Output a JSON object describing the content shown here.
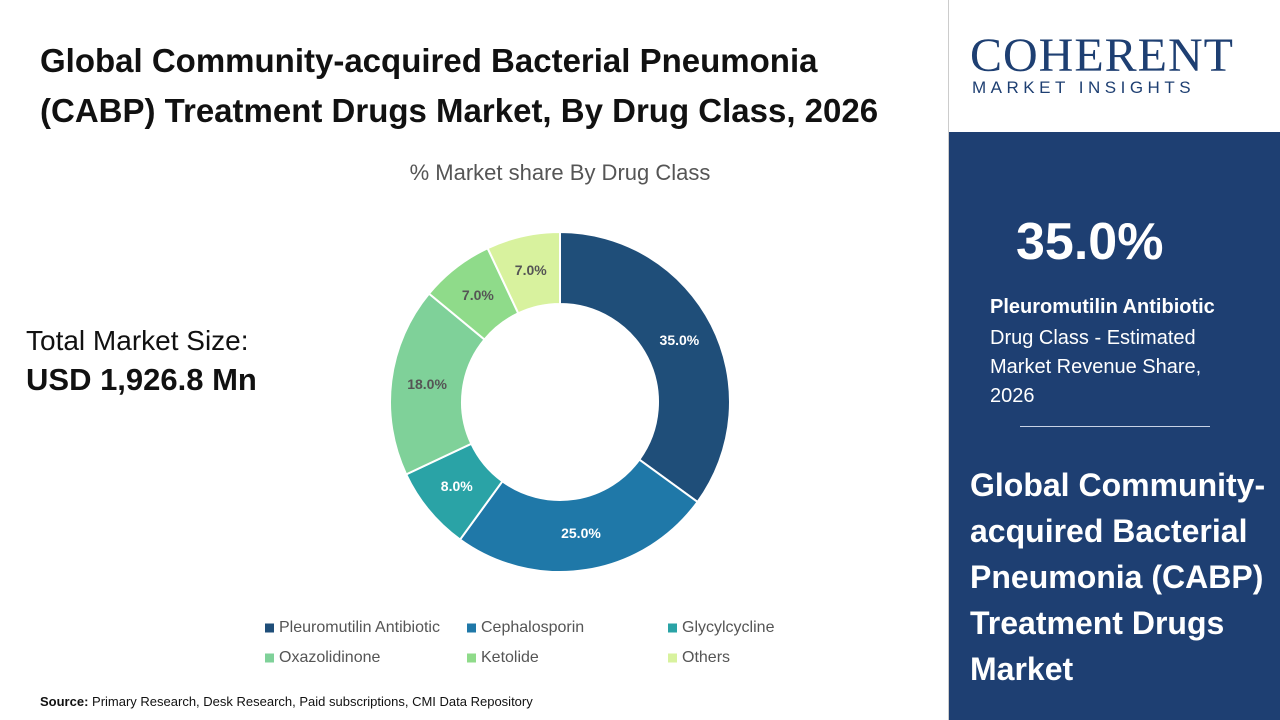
{
  "chart_data": {
    "type": "donut",
    "title": "Global Community-acquired Bacterial Pneumonia (CABP) Treatment Drugs Market, By Drug Class, 2026",
    "subtitle": "% Market share By Drug Class",
    "categories": [
      "Pleuromutilin Antibiotic",
      "Cephalosporin",
      "Glycylcycline",
      "Oxazolidinone",
      "Ketolide",
      "Others"
    ],
    "values": [
      35,
      25,
      8,
      18,
      7,
      7
    ],
    "value_labels": [
      "35.0%",
      "25.0%",
      "8.0%",
      "18.0%",
      "7.0%",
      "7.0%"
    ],
    "colors": [
      "#1f4e79",
      "#1f78a8",
      "#2aa3a6",
      "#7fd199",
      "#8fdb8a",
      "#d8f29e"
    ]
  },
  "market_size": {
    "label": "Total Market Size:",
    "value": "USD 1,926.8 Mn"
  },
  "logo": {
    "name": "COHERENT",
    "tagline": "MARKET INSIGHTS"
  },
  "side_panel": {
    "highlight_category": "Pleuromutilin Antibiotic",
    "highlight_text": "Drug Class - Estimated Market Revenue Share, 2026",
    "title": "Global Community-acquired Bacterial Pneumonia (CABP) Treatment Drugs Market"
  },
  "source": {
    "label": "Source:",
    "text": "Primary Research, Desk Research, Paid subscriptions, CMI Data Repository"
  }
}
